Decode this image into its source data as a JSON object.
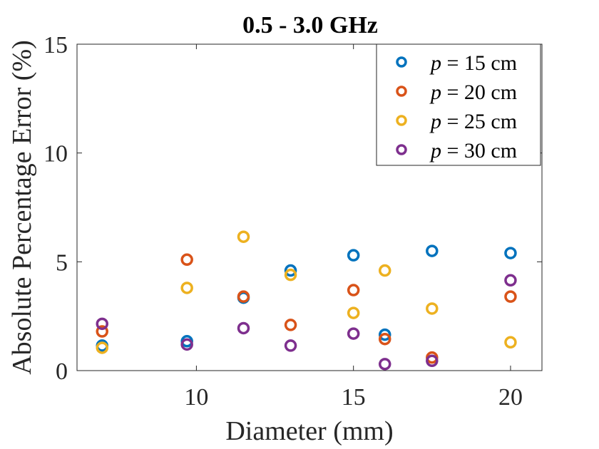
{
  "chart_data": {
    "type": "scatter",
    "title": "0.5 - 3.0 GHz",
    "xlabel": "Diameter (mm)",
    "ylabel": "Absolute Percentage Error (%)",
    "xlim": [
      6.2,
      21
    ],
    "ylim": [
      0,
      15
    ],
    "xticks": [
      10,
      15,
      20
    ],
    "yticks": [
      0,
      5,
      10,
      15
    ],
    "legend_position": "top-right",
    "series": [
      {
        "name": "p = 15 cm",
        "legend_var": "p",
        "legend_rest": " = 15 cm",
        "color": "#0072BD",
        "points": [
          [
            7,
            1.15
          ],
          [
            9.7,
            1.35
          ],
          [
            11.5,
            3.35
          ],
          [
            13,
            4.6
          ],
          [
            15,
            5.3
          ],
          [
            16,
            1.65
          ],
          [
            17.5,
            5.5
          ],
          [
            20,
            5.4
          ]
        ]
      },
      {
        "name": "p = 20 cm",
        "legend_var": "p",
        "legend_rest": " = 20 cm",
        "color": "#D95319",
        "points": [
          [
            7,
            1.8
          ],
          [
            9.7,
            5.1
          ],
          [
            11.5,
            3.4
          ],
          [
            13,
            2.1
          ],
          [
            15,
            3.7
          ],
          [
            16,
            1.45
          ],
          [
            17.5,
            0.6
          ],
          [
            20,
            3.4
          ]
        ]
      },
      {
        "name": "p = 25 cm",
        "legend_var": "p",
        "legend_rest": " = 25 cm",
        "color": "#EDB120",
        "points": [
          [
            7,
            1.05
          ],
          [
            9.7,
            3.8
          ],
          [
            11.5,
            6.15
          ],
          [
            13,
            4.4
          ],
          [
            15,
            2.65
          ],
          [
            16,
            4.6
          ],
          [
            17.5,
            2.85
          ],
          [
            20,
            1.3
          ]
        ]
      },
      {
        "name": "p = 30 cm",
        "legend_var": "p",
        "legend_rest": " = 30 cm",
        "color": "#7E2F8E",
        "points": [
          [
            7,
            2.15
          ],
          [
            9.7,
            1.2
          ],
          [
            11.5,
            1.95
          ],
          [
            13,
            1.15
          ],
          [
            15,
            1.7
          ],
          [
            16,
            0.3
          ],
          [
            17.5,
            0.45
          ],
          [
            20,
            4.15
          ]
        ]
      }
    ]
  }
}
